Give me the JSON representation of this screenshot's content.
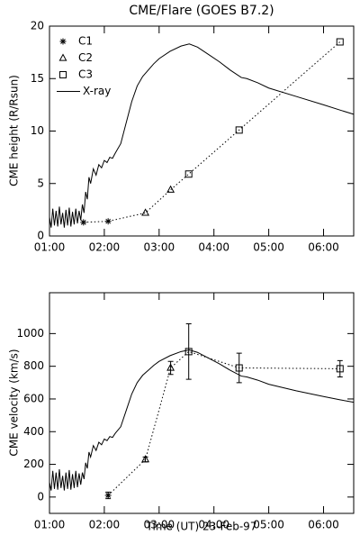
{
  "chart_data": [
    {
      "type": "line",
      "title": "CME/Flare (GOES B7.2)",
      "y_label": "CME height (R/Rsun)",
      "legend": "upper left",
      "xlim": [
        1,
        6.55
      ],
      "xticks": [
        {
          "value": 1,
          "label": "01:00"
        },
        {
          "value": 2,
          "label": "02:00"
        },
        {
          "value": 3,
          "label": "03:00"
        },
        {
          "value": 4,
          "label": "04:00"
        },
        {
          "value": 5,
          "label": "05:00"
        },
        {
          "value": 6,
          "label": "06:00"
        }
      ],
      "ylim": [
        0,
        20
      ],
      "yticks": [
        0,
        5,
        10,
        15,
        20
      ],
      "series": [
        {
          "name": "C1",
          "color": "#000000",
          "marker": "asterisk",
          "line": "dotted",
          "x": [
            1.62,
            2.07
          ],
          "values": [
            1.3,
            1.4
          ]
        },
        {
          "name": "C2",
          "color": "#000000",
          "marker": "triangle",
          "line": "dotted",
          "x": [
            2.75,
            3.21
          ],
          "values": [
            2.2,
            4.4
          ]
        },
        {
          "name": "C3",
          "color": "#000000",
          "marker": "square",
          "line": "dotted",
          "x": [
            3.54,
            4.46,
            6.3
          ],
          "values": [
            5.9,
            10.1,
            18.5
          ]
        },
        {
          "name": "X-ray",
          "color": "#000000",
          "line": "solid",
          "x": [
            1.0,
            1.03,
            1.06,
            1.09,
            1.12,
            1.15,
            1.18,
            1.21,
            1.24,
            1.27,
            1.3,
            1.33,
            1.36,
            1.39,
            1.42,
            1.45,
            1.48,
            1.51,
            1.54,
            1.57,
            1.6,
            1.63,
            1.66,
            1.69,
            1.72,
            1.75,
            1.8,
            1.85,
            1.9,
            1.95,
            2.0,
            2.05,
            2.1,
            2.15,
            2.2,
            2.3,
            2.4,
            2.5,
            2.6,
            2.7,
            2.8,
            2.9,
            3.0,
            3.2,
            3.4,
            3.55,
            3.7,
            3.9,
            4.1,
            4.3,
            4.5,
            4.6,
            4.8,
            5.0,
            5.5,
            6.0,
            6.3,
            6.55
          ],
          "values": [
            1.8,
            0.8,
            2.6,
            1.0,
            2.4,
            0.9,
            2.8,
            1.1,
            2.2,
            0.8,
            2.5,
            1.0,
            2.7,
            0.9,
            2.3,
            1.1,
            2.6,
            1.2,
            2.4,
            1.5,
            3.0,
            2.2,
            4.2,
            3.5,
            5.6,
            5.0,
            6.4,
            5.8,
            6.8,
            6.5,
            7.2,
            7.0,
            7.5,
            7.4,
            7.9,
            8.8,
            10.8,
            12.8,
            14.3,
            15.2,
            15.8,
            16.4,
            16.9,
            17.6,
            18.1,
            18.3,
            18.0,
            17.3,
            16.6,
            15.8,
            15.1,
            15.0,
            14.6,
            14.1,
            13.3,
            12.5,
            12.0,
            11.6
          ]
        }
      ]
    },
    {
      "type": "line",
      "y_label": "CME velocity (km/s)",
      "x_label": "Time (UT) 23-Feb-97",
      "xlim": [
        1,
        6.55
      ],
      "xticks": [
        {
          "value": 1,
          "label": "01:00"
        },
        {
          "value": 2,
          "label": "02:00"
        },
        {
          "value": 3,
          "label": "03:00"
        },
        {
          "value": 4,
          "label": "04:00"
        },
        {
          "value": 5,
          "label": "05:00"
        },
        {
          "value": 6,
          "label": "06:00"
        }
      ],
      "ylim": [
        -100,
        1250
      ],
      "yticks": [
        0,
        200,
        400,
        600,
        800,
        1000
      ],
      "series": [
        {
          "name": "C1",
          "color": "#000000",
          "marker": "asterisk",
          "line": "dotted",
          "x": [
            2.07
          ],
          "values": [
            10
          ],
          "errors": [
            20
          ]
        },
        {
          "name": "C2",
          "color": "#000000",
          "marker": "triangle",
          "line": "dotted",
          "x": [
            2.75,
            3.21
          ],
          "values": [
            230,
            790
          ],
          "errors": [
            15,
            40
          ]
        },
        {
          "name": "C3",
          "color": "#000000",
          "marker": "square",
          "line": "dotted",
          "x": [
            3.54,
            4.46,
            6.3
          ],
          "values": [
            890,
            790,
            785
          ],
          "errors": [
            170,
            90,
            50
          ]
        },
        {
          "name": "X-ray",
          "color": "#000000",
          "line": "solid",
          "x": [
            1.0,
            1.03,
            1.06,
            1.09,
            1.12,
            1.15,
            1.18,
            1.21,
            1.24,
            1.27,
            1.3,
            1.33,
            1.36,
            1.39,
            1.42,
            1.45,
            1.48,
            1.51,
            1.54,
            1.57,
            1.6,
            1.63,
            1.66,
            1.69,
            1.72,
            1.75,
            1.8,
            1.85,
            1.9,
            1.95,
            2.0,
            2.05,
            2.1,
            2.15,
            2.2,
            2.3,
            2.4,
            2.5,
            2.6,
            2.7,
            2.8,
            2.9,
            3.0,
            3.2,
            3.4,
            3.55,
            3.7,
            3.9,
            4.1,
            4.3,
            4.5,
            4.6,
            4.8,
            5.0,
            5.5,
            6.0,
            6.3,
            6.55
          ],
          "values": [
            90,
            40,
            160,
            50,
            150,
            45,
            170,
            55,
            130,
            40,
            150,
            50,
            165,
            45,
            140,
            55,
            160,
            60,
            145,
            75,
            150,
            110,
            210,
            175,
            275,
            245,
            315,
            285,
            335,
            320,
            355,
            345,
            370,
            365,
            390,
            430,
            530,
            630,
            700,
            745,
            775,
            805,
            830,
            865,
            890,
            900,
            885,
            850,
            815,
            775,
            740,
            735,
            715,
            690,
            650,
            615,
            595,
            580
          ]
        }
      ]
    }
  ]
}
